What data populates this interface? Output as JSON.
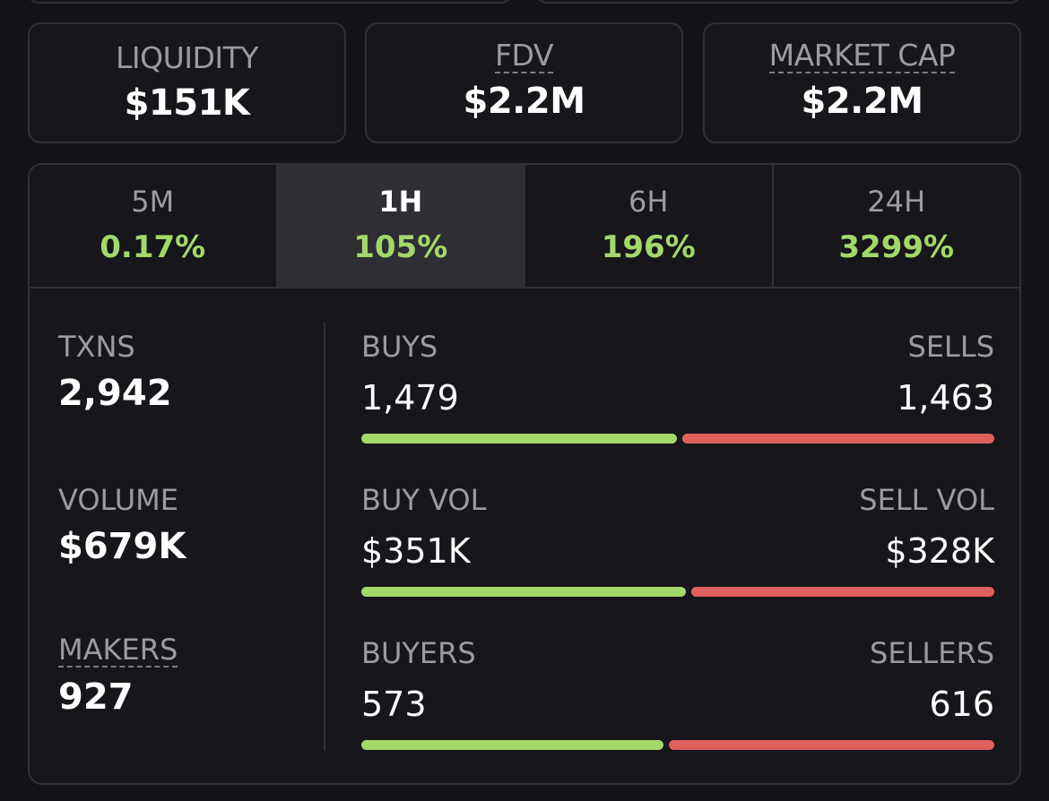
{
  "stats": [
    {
      "label": "LIQUIDITY",
      "value": "$151K"
    },
    {
      "label": "FDV",
      "value": "$2.2M"
    },
    {
      "label": "MARKET CAP",
      "value": "$2.2M"
    }
  ],
  "tabs": [
    {
      "label": "5M",
      "change": "0.17%"
    },
    {
      "label": "1H",
      "change": "105%"
    },
    {
      "label": "6H",
      "change": "196%"
    },
    {
      "label": "24H",
      "change": "3299%"
    }
  ],
  "active_tab": "1H",
  "left": {
    "txns": {
      "label": "TXNS",
      "value": "2,942"
    },
    "volume": {
      "label": "VOLUME",
      "value": "$679K"
    },
    "makers": {
      "label": "MAKERS",
      "value": "927"
    }
  },
  "rows": [
    {
      "left_label": "BUYS",
      "right_label": "SELLS",
      "left_value": "1,479",
      "right_value": "1,463",
      "buy_fraction": 0.503
    },
    {
      "left_label": "BUY VOL",
      "right_label": "SELL VOL",
      "left_value": "$351K",
      "right_value": "$328K",
      "buy_fraction": 0.517
    },
    {
      "left_label": "BUYERS",
      "right_label": "SELLERS",
      "left_value": "573",
      "right_value": "616",
      "buy_fraction": 0.482
    }
  ],
  "colors": {
    "positive": "#a3d86a",
    "negative": "#e0605e",
    "background": "#131318",
    "border": "#2f2f36"
  }
}
